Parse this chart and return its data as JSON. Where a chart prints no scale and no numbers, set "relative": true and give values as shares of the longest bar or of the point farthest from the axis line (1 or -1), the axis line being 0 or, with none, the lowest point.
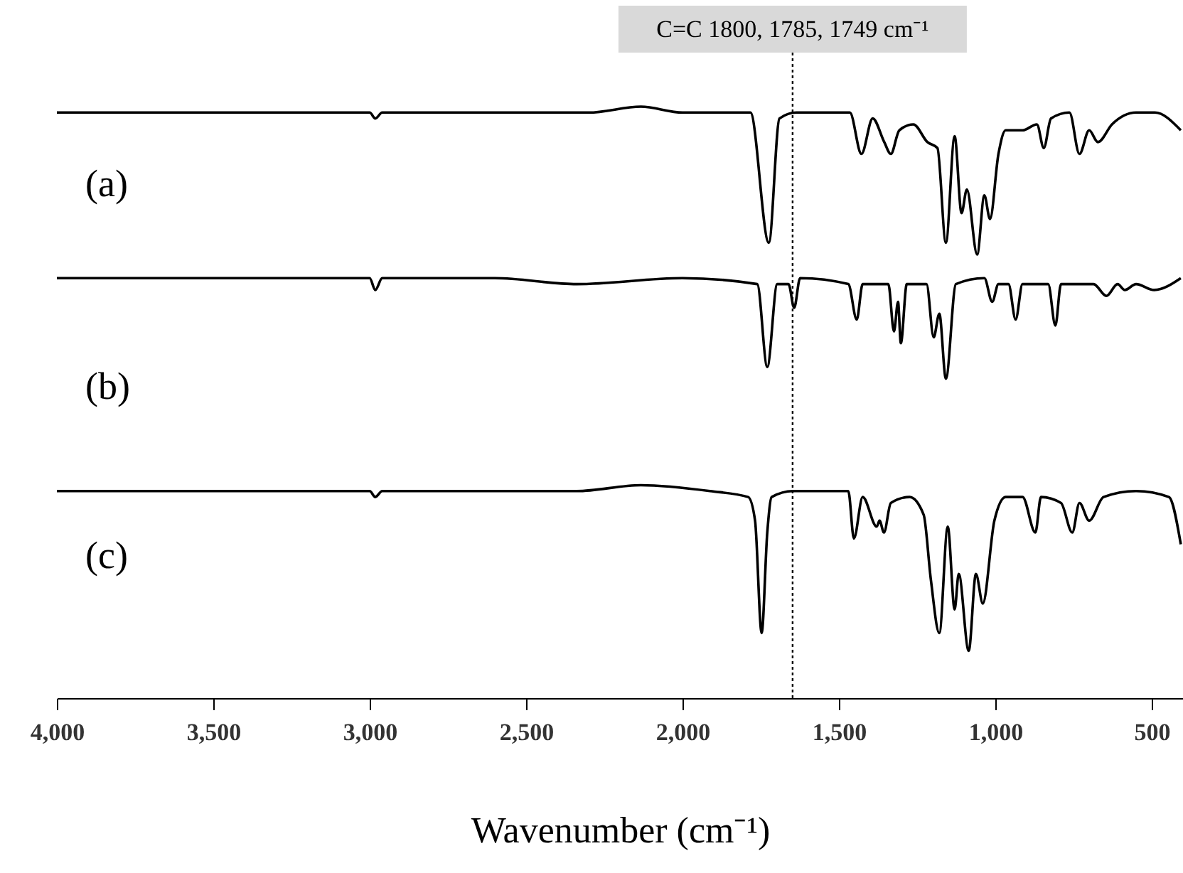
{
  "chart_data": {
    "type": "line",
    "relative": true,
    "xlabel": "Wavenumber (cm⁻¹)",
    "xlim": [
      4000,
      400
    ],
    "xticks": [
      {
        "value": 4000,
        "label": "4,000"
      },
      {
        "value": 3500,
        "label": "3,500"
      },
      {
        "value": 3000,
        "label": "3,000"
      },
      {
        "value": 2500,
        "label": "2,500"
      },
      {
        "value": 2000,
        "label": "2,000"
      },
      {
        "value": 1500,
        "label": "1,500"
      },
      {
        "value": 1000,
        "label": "1,000"
      },
      500
    ],
    "grid": false,
    "legend": false,
    "line_style": "solid",
    "marker": "none",
    "ref_lines": [
      {
        "axis": "x",
        "value": 1648,
        "label": "C=C  1800, 1785, 1749 cm⁻¹",
        "line_style": "dotted",
        "color": "#000000"
      }
    ],
    "series": [
      {
        "name": "(a)",
        "color": "#000000",
        "x": [
          4000,
          3500,
          3000,
          2982,
          2960,
          2940,
          2600,
          2338,
          2300,
          2133,
          2000,
          1783,
          1724,
          1690,
          1636,
          1465,
          1428,
          1392,
          1355,
          1334,
          1307,
          1262,
          1217,
          1185,
          1158,
          1130,
          1108,
          1091,
          1058,
          1035,
          1017,
          990,
          967,
          913,
          867,
          845,
          822,
          763,
          731,
          700,
          672,
          627,
          550,
          490,
          407
        ],
        "values": [
          0.99,
          0.99,
          0.99,
          0.98,
          0.99,
          0.99,
          0.99,
          0.99,
          0.99,
          1.0,
          0.99,
          0.99,
          0.77,
          0.98,
          0.99,
          0.99,
          0.92,
          0.98,
          0.94,
          0.92,
          0.96,
          0.97,
          0.94,
          0.93,
          0.77,
          0.95,
          0.82,
          0.86,
          0.75,
          0.85,
          0.81,
          0.92,
          0.96,
          0.96,
          0.97,
          0.93,
          0.98,
          0.99,
          0.92,
          0.96,
          0.94,
          0.97,
          0.99,
          0.99,
          0.96
        ]
      },
      {
        "name": "(b)",
        "color": "#000000",
        "x": [
          4000,
          3500,
          3000,
          2982,
          2960,
          2600,
          2338,
          2000,
          1761,
          1729,
          1697,
          1661,
          1643,
          1624,
          1470,
          1443,
          1424,
          1388,
          1342,
          1324,
          1311,
          1302,
          1283,
          1220,
          1197,
          1179,
          1158,
          1126,
          1035,
          1010,
          990,
          958,
          935,
          913,
          831,
          808,
          790,
          686,
          645,
          609,
          586,
          550,
          492,
          407
        ],
        "values": [
          0.71,
          0.71,
          0.71,
          0.69,
          0.71,
          0.71,
          0.7,
          0.71,
          0.7,
          0.56,
          0.7,
          0.7,
          0.66,
          0.71,
          0.7,
          0.64,
          0.7,
          0.7,
          0.7,
          0.62,
          0.67,
          0.6,
          0.7,
          0.7,
          0.61,
          0.65,
          0.54,
          0.7,
          0.71,
          0.67,
          0.7,
          0.7,
          0.64,
          0.7,
          0.7,
          0.63,
          0.7,
          0.7,
          0.68,
          0.7,
          0.69,
          0.7,
          0.69,
          0.71
        ]
      },
      {
        "name": "(c)",
        "color": "#000000",
        "x": [
          4000,
          3500,
          3000,
          2982,
          2960,
          2940,
          2600,
          2338,
          2133,
          1912,
          1790,
          1768,
          1747,
          1729,
          1715,
          1647,
          1470,
          1452,
          1424,
          1379,
          1370,
          1356,
          1334,
          1274,
          1229,
          1206,
          1179,
          1152,
          1130,
          1117,
          1085,
          1062,
          1040,
          1003,
          967,
          913,
          872,
          854,
          790,
          754,
          731,
          700,
          654,
          550,
          445,
          407
        ],
        "values": [
          0.35,
          0.35,
          0.35,
          0.34,
          0.35,
          0.35,
          0.35,
          0.35,
          0.36,
          0.35,
          0.34,
          0.3,
          0.11,
          0.28,
          0.34,
          0.35,
          0.35,
          0.27,
          0.34,
          0.29,
          0.3,
          0.28,
          0.33,
          0.34,
          0.31,
          0.2,
          0.11,
          0.29,
          0.15,
          0.21,
          0.08,
          0.21,
          0.16,
          0.3,
          0.34,
          0.34,
          0.28,
          0.34,
          0.33,
          0.28,
          0.33,
          0.3,
          0.34,
          0.35,
          0.34,
          0.26
        ]
      }
    ]
  }
}
